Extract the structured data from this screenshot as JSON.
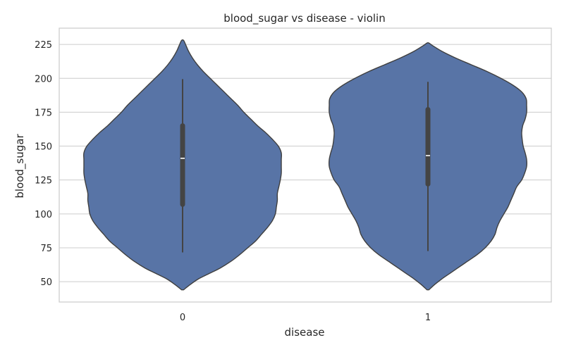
{
  "chart_data": {
    "type": "violin",
    "title": "blood_sugar vs disease - violin",
    "xlabel": "disease",
    "ylabel": "blood_sugar",
    "categories": [
      "0",
      "1"
    ],
    "ylim": [
      35,
      237
    ],
    "yticks": [
      50,
      75,
      100,
      125,
      150,
      175,
      200,
      225
    ],
    "grid": true,
    "color": "#5874a6",
    "violins": [
      {
        "category": "0",
        "min": 72,
        "q1": 107,
        "median": 141,
        "q3": 165,
        "max": 199,
        "density_min": 44,
        "density_max": 228,
        "density": [
          [
            44,
            0.01
          ],
          [
            48,
            0.08
          ],
          [
            52,
            0.16
          ],
          [
            56,
            0.27
          ],
          [
            60,
            0.38
          ],
          [
            65,
            0.49
          ],
          [
            70,
            0.58
          ],
          [
            75,
            0.66
          ],
          [
            80,
            0.74
          ],
          [
            85,
            0.8
          ],
          [
            90,
            0.86
          ],
          [
            95,
            0.91
          ],
          [
            100,
            0.94
          ],
          [
            105,
            0.95
          ],
          [
            110,
            0.96
          ],
          [
            115,
            0.96
          ],
          [
            120,
            0.975
          ],
          [
            125,
            0.99
          ],
          [
            130,
            1.0
          ],
          [
            135,
            1.0
          ],
          [
            140,
            1.0
          ],
          [
            145,
            1.0
          ],
          [
            150,
            0.97
          ],
          [
            155,
            0.91
          ],
          [
            160,
            0.84
          ],
          [
            165,
            0.76
          ],
          [
            170,
            0.69
          ],
          [
            175,
            0.62
          ],
          [
            180,
            0.56
          ],
          [
            185,
            0.49
          ],
          [
            190,
            0.42
          ],
          [
            195,
            0.35
          ],
          [
            200,
            0.28
          ],
          [
            205,
            0.21
          ],
          [
            210,
            0.15
          ],
          [
            215,
            0.1
          ],
          [
            220,
            0.06
          ],
          [
            225,
            0.03
          ],
          [
            228,
            0.01
          ]
        ]
      },
      {
        "category": "1",
        "min": 73,
        "q1": 122,
        "median": 143,
        "q3": 177,
        "max": 197,
        "density_min": 44,
        "density_max": 226,
        "density": [
          [
            44,
            0.01
          ],
          [
            48,
            0.07
          ],
          [
            52,
            0.14
          ],
          [
            56,
            0.22
          ],
          [
            60,
            0.3
          ],
          [
            65,
            0.4
          ],
          [
            70,
            0.5
          ],
          [
            75,
            0.58
          ],
          [
            80,
            0.64
          ],
          [
            85,
            0.68
          ],
          [
            90,
            0.7
          ],
          [
            95,
            0.73
          ],
          [
            100,
            0.77
          ],
          [
            105,
            0.81
          ],
          [
            110,
            0.84
          ],
          [
            115,
            0.87
          ],
          [
            120,
            0.9
          ],
          [
            125,
            0.95
          ],
          [
            130,
            0.98
          ],
          [
            135,
            1.0
          ],
          [
            140,
            1.0
          ],
          [
            145,
            0.985
          ],
          [
            150,
            0.965
          ],
          [
            155,
            0.955
          ],
          [
            160,
            0.95
          ],
          [
            165,
            0.96
          ],
          [
            170,
            0.985
          ],
          [
            175,
            1.0
          ],
          [
            180,
            1.0
          ],
          [
            185,
            0.995
          ],
          [
            190,
            0.95
          ],
          [
            195,
            0.86
          ],
          [
            200,
            0.74
          ],
          [
            205,
            0.6
          ],
          [
            210,
            0.44
          ],
          [
            215,
            0.28
          ],
          [
            220,
            0.14
          ],
          [
            224,
            0.05
          ],
          [
            226,
            0.01
          ]
        ]
      }
    ]
  }
}
